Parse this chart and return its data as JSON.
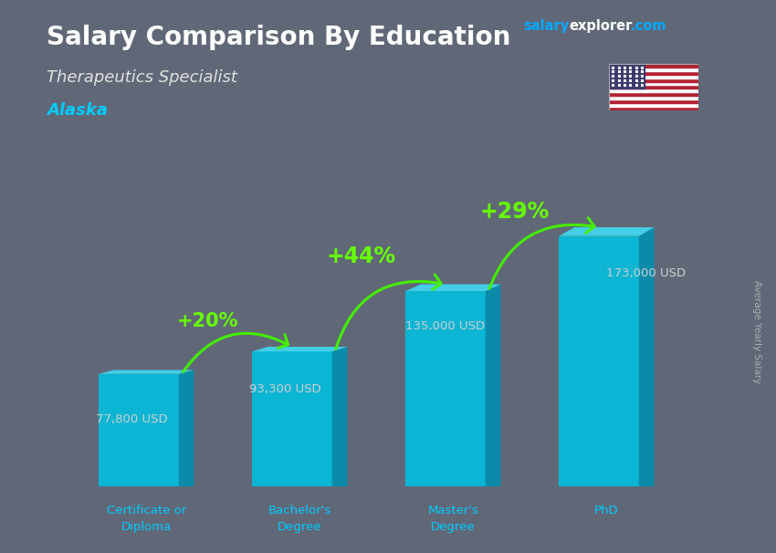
{
  "title": "Salary Comparison By Education",
  "subtitle": "Therapeutics Specialist",
  "location": "Alaska",
  "ylabel": "Average Yearly Salary",
  "categories": [
    "Certificate or\nDiploma",
    "Bachelor's\nDegree",
    "Master's\nDegree",
    "PhD"
  ],
  "values": [
    77800,
    93300,
    135000,
    173000
  ],
  "value_labels": [
    "77,800 USD",
    "93,300 USD",
    "135,000 USD",
    "173,000 USD"
  ],
  "pct_labels": [
    "+20%",
    "+44%",
    "+29%"
  ],
  "bar_color_front": "#00c0e0",
  "bar_color_top": "#40d8f0",
  "bar_color_side": "#0090b0",
  "bg_color": "#606878",
  "title_color": "#ffffff",
  "subtitle_color": "#e0e0e0",
  "location_color": "#00ccff",
  "value_label_color": "#d0d0d0",
  "pct_color": "#66ff00",
  "arrow_color": "#44ee00",
  "plot_max": 210000,
  "bar_width": 0.52
}
